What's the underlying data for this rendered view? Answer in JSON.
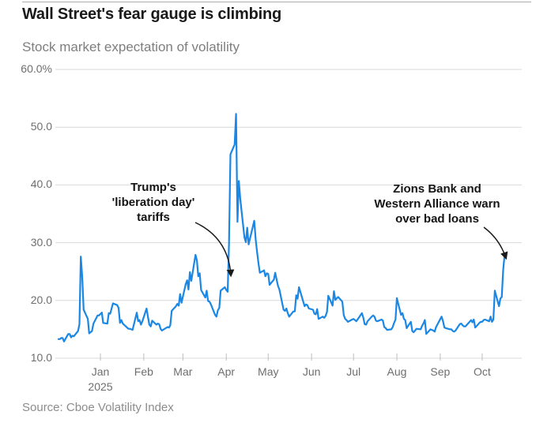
{
  "header": {
    "title": "Wall Street's fear gauge is climbing",
    "subtitle": "Stock market expectation of volatility"
  },
  "footer": {
    "source": "Source: Cboe Volatility Index"
  },
  "chart_data": {
    "type": "line",
    "title": "Wall Street's fear gauge is climbing",
    "subtitle": "Stock market expectation of volatility",
    "series_name": "Cboe Volatility Index (VIX)",
    "unit": "%",
    "ylim": [
      10,
      60
    ],
    "grid": "horizontal",
    "legend": "none",
    "colors": {
      "line": "#1b87e4",
      "grid": "#d9d9d9",
      "tick": "#bdbdbd",
      "arrow": "#1a1a1a"
    },
    "yticks": [
      {
        "value": 60,
        "label": "60.0%"
      },
      {
        "value": 50,
        "label": "50.0"
      },
      {
        "value": 40,
        "label": "40.0"
      },
      {
        "value": 30,
        "label": "30.0"
      },
      {
        "value": 20,
        "label": "20.0"
      },
      {
        "value": 10,
        "label": "10.0"
      }
    ],
    "xticks": [
      {
        "date": "2025-01-01",
        "label": "Jan",
        "sublabel": "2025"
      },
      {
        "date": "2025-02-01",
        "label": "Feb"
      },
      {
        "date": "2025-03-01",
        "label": "Mar"
      },
      {
        "date": "2025-04-01",
        "label": "Apr"
      },
      {
        "date": "2025-05-01",
        "label": "May"
      },
      {
        "date": "2025-06-01",
        "label": "Jun"
      },
      {
        "date": "2025-07-01",
        "label": "Jul"
      },
      {
        "date": "2025-08-01",
        "label": "Aug"
      },
      {
        "date": "2025-09-01",
        "label": "Sep"
      },
      {
        "date": "2025-10-01",
        "label": "Oct"
      }
    ],
    "annotations": [
      {
        "text": "Trump's\n'liberation day'\ntariffs",
        "center_x": 194,
        "top_y": 228,
        "arrow": {
          "from": [
            247,
            282
          ],
          "bend": [
            289,
            302
          ],
          "to": [
            292,
            349
          ]
        }
      },
      {
        "text": "Zions Bank and\nWestern Alliance warn\nover bad loans",
        "center_x": 553,
        "top_y": 230,
        "arrow": {
          "from": [
            612,
            288
          ],
          "bend": [
            632,
            303
          ],
          "to": [
            640,
            327
          ]
        }
      }
    ],
    "points": [
      [
        "2024-12-02",
        13.3
      ],
      [
        "2024-12-03",
        13.3
      ],
      [
        "2024-12-04",
        13.5
      ],
      [
        "2024-12-05",
        13.5
      ],
      [
        "2024-12-06",
        12.9
      ],
      [
        "2024-12-09",
        14.2
      ],
      [
        "2024-12-10",
        14.2
      ],
      [
        "2024-12-11",
        13.6
      ],
      [
        "2024-12-12",
        13.9
      ],
      [
        "2024-12-13",
        13.8
      ],
      [
        "2024-12-16",
        14.7
      ],
      [
        "2024-12-17",
        15.9
      ],
      [
        "2024-12-18",
        27.6
      ],
      [
        "2024-12-19",
        24.1
      ],
      [
        "2024-12-20",
        18.4
      ],
      [
        "2024-12-23",
        16.8
      ],
      [
        "2024-12-24",
        14.3
      ],
      [
        "2024-12-26",
        14.7
      ],
      [
        "2024-12-27",
        16.0
      ],
      [
        "2024-12-30",
        17.4
      ],
      [
        "2024-12-31",
        17.4
      ],
      [
        "2025-01-02",
        17.9
      ],
      [
        "2025-01-03",
        16.1
      ],
      [
        "2025-01-06",
        16.0
      ],
      [
        "2025-01-07",
        17.8
      ],
      [
        "2025-01-08",
        17.7
      ],
      [
        "2025-01-10",
        19.5
      ],
      [
        "2025-01-13",
        19.2
      ],
      [
        "2025-01-14",
        18.7
      ],
      [
        "2025-01-15",
        16.1
      ],
      [
        "2025-01-16",
        16.6
      ],
      [
        "2025-01-17",
        16.0
      ],
      [
        "2025-01-21",
        15.1
      ],
      [
        "2025-01-22",
        15.1
      ],
      [
        "2025-01-23",
        15.0
      ],
      [
        "2025-01-24",
        14.9
      ],
      [
        "2025-01-27",
        17.9
      ],
      [
        "2025-01-28",
        16.4
      ],
      [
        "2025-01-29",
        16.6
      ],
      [
        "2025-01-30",
        15.8
      ],
      [
        "2025-01-31",
        16.4
      ],
      [
        "2025-02-03",
        18.6
      ],
      [
        "2025-02-04",
        17.2
      ],
      [
        "2025-02-05",
        15.8
      ],
      [
        "2025-02-06",
        15.5
      ],
      [
        "2025-02-07",
        16.5
      ],
      [
        "2025-02-10",
        15.8
      ],
      [
        "2025-02-11",
        16.0
      ],
      [
        "2025-02-12",
        15.9
      ],
      [
        "2025-02-13",
        15.1
      ],
      [
        "2025-02-14",
        14.8
      ],
      [
        "2025-02-18",
        15.4
      ],
      [
        "2025-02-19",
        15.3
      ],
      [
        "2025-02-20",
        15.7
      ],
      [
        "2025-02-21",
        18.2
      ],
      [
        "2025-02-24",
        19.0
      ],
      [
        "2025-02-25",
        19.4
      ],
      [
        "2025-02-26",
        19.1
      ],
      [
        "2025-02-27",
        21.1
      ],
      [
        "2025-02-28",
        19.6
      ],
      [
        "2025-03-03",
        22.8
      ],
      [
        "2025-03-04",
        23.5
      ],
      [
        "2025-03-05",
        21.9
      ],
      [
        "2025-03-06",
        24.9
      ],
      [
        "2025-03-07",
        23.4
      ],
      [
        "2025-03-10",
        27.9
      ],
      [
        "2025-03-11",
        26.9
      ],
      [
        "2025-03-12",
        24.2
      ],
      [
        "2025-03-13",
        24.7
      ],
      [
        "2025-03-14",
        21.8
      ],
      [
        "2025-03-17",
        20.5
      ],
      [
        "2025-03-18",
        21.7
      ],
      [
        "2025-03-19",
        19.9
      ],
      [
        "2025-03-20",
        19.8
      ],
      [
        "2025-03-21",
        19.3
      ],
      [
        "2025-03-24",
        17.5
      ],
      [
        "2025-03-25",
        17.2
      ],
      [
        "2025-03-26",
        18.3
      ],
      [
        "2025-03-27",
        18.7
      ],
      [
        "2025-03-28",
        21.7
      ],
      [
        "2025-03-31",
        22.3
      ],
      [
        "2025-04-01",
        21.8
      ],
      [
        "2025-04-02",
        21.5
      ],
      [
        "2025-04-03",
        30.0
      ],
      [
        "2025-04-04",
        45.3
      ],
      [
        "2025-04-07",
        47.0
      ],
      [
        "2025-04-08",
        52.3
      ],
      [
        "2025-04-09",
        33.6
      ],
      [
        "2025-04-10",
        40.7
      ],
      [
        "2025-04-11",
        37.6
      ],
      [
        "2025-04-14",
        30.9
      ],
      [
        "2025-04-15",
        30.1
      ],
      [
        "2025-04-16",
        32.6
      ],
      [
        "2025-04-17",
        29.7
      ],
      [
        "2025-04-21",
        33.8
      ],
      [
        "2025-04-22",
        30.6
      ],
      [
        "2025-04-23",
        28.5
      ],
      [
        "2025-04-24",
        26.5
      ],
      [
        "2025-04-25",
        24.8
      ],
      [
        "2025-04-28",
        25.2
      ],
      [
        "2025-04-29",
        24.2
      ],
      [
        "2025-04-30",
        24.7
      ],
      [
        "2025-05-01",
        24.6
      ],
      [
        "2025-05-02",
        22.7
      ],
      [
        "2025-05-05",
        23.6
      ],
      [
        "2025-05-06",
        24.8
      ],
      [
        "2025-05-07",
        23.6
      ],
      [
        "2025-05-08",
        22.5
      ],
      [
        "2025-05-09",
        21.9
      ],
      [
        "2025-05-12",
        18.4
      ],
      [
        "2025-05-13",
        18.2
      ],
      [
        "2025-05-14",
        18.6
      ],
      [
        "2025-05-15",
        17.8
      ],
      [
        "2025-05-16",
        17.2
      ],
      [
        "2025-05-19",
        18.1
      ],
      [
        "2025-05-20",
        18.1
      ],
      [
        "2025-05-21",
        20.9
      ],
      [
        "2025-05-22",
        20.3
      ],
      [
        "2025-05-23",
        22.3
      ],
      [
        "2025-05-27",
        19.0
      ],
      [
        "2025-05-28",
        19.3
      ],
      [
        "2025-05-29",
        19.2
      ],
      [
        "2025-05-30",
        18.6
      ],
      [
        "2025-06-02",
        18.4
      ],
      [
        "2025-06-03",
        17.7
      ],
      [
        "2025-06-04",
        17.6
      ],
      [
        "2025-06-05",
        18.5
      ],
      [
        "2025-06-06",
        16.8
      ],
      [
        "2025-06-09",
        17.2
      ],
      [
        "2025-06-10",
        17.0
      ],
      [
        "2025-06-11",
        17.3
      ],
      [
        "2025-06-12",
        18.0
      ],
      [
        "2025-06-13",
        20.8
      ],
      [
        "2025-06-16",
        19.1
      ],
      [
        "2025-06-17",
        21.6
      ],
      [
        "2025-06-18",
        20.1
      ],
      [
        "2025-06-20",
        20.6
      ],
      [
        "2025-06-23",
        19.8
      ],
      [
        "2025-06-24",
        17.5
      ],
      [
        "2025-06-25",
        16.8
      ],
      [
        "2025-06-26",
        16.6
      ],
      [
        "2025-06-27",
        16.3
      ],
      [
        "2025-06-30",
        16.7
      ],
      [
        "2025-07-01",
        16.8
      ],
      [
        "2025-07-02",
        16.6
      ],
      [
        "2025-07-03",
        16.4
      ],
      [
        "2025-07-07",
        17.8
      ],
      [
        "2025-07-08",
        17.0
      ],
      [
        "2025-07-09",
        15.9
      ],
      [
        "2025-07-10",
        15.8
      ],
      [
        "2025-07-11",
        16.4
      ],
      [
        "2025-07-14",
        17.2
      ],
      [
        "2025-07-15",
        17.4
      ],
      [
        "2025-07-16",
        17.2
      ],
      [
        "2025-07-17",
        16.5
      ],
      [
        "2025-07-18",
        16.4
      ],
      [
        "2025-07-21",
        16.7
      ],
      [
        "2025-07-22",
        16.5
      ],
      [
        "2025-07-23",
        15.4
      ],
      [
        "2025-07-24",
        15.2
      ],
      [
        "2025-07-25",
        14.9
      ],
      [
        "2025-07-28",
        15.0
      ],
      [
        "2025-07-29",
        15.4
      ],
      [
        "2025-07-30",
        16.1
      ],
      [
        "2025-07-31",
        16.7
      ],
      [
        "2025-08-01",
        20.4
      ],
      [
        "2025-08-04",
        17.5
      ],
      [
        "2025-08-05",
        17.8
      ],
      [
        "2025-08-06",
        16.8
      ],
      [
        "2025-08-07",
        16.6
      ],
      [
        "2025-08-08",
        15.2
      ],
      [
        "2025-08-11",
        16.3
      ],
      [
        "2025-08-12",
        14.7
      ],
      [
        "2025-08-13",
        14.5
      ],
      [
        "2025-08-14",
        14.8
      ],
      [
        "2025-08-15",
        15.1
      ],
      [
        "2025-08-18",
        15.0
      ],
      [
        "2025-08-19",
        15.6
      ],
      [
        "2025-08-20",
        16.0
      ],
      [
        "2025-08-21",
        16.6
      ],
      [
        "2025-08-22",
        14.2
      ],
      [
        "2025-08-25",
        15.0
      ],
      [
        "2025-08-26",
        14.9
      ],
      [
        "2025-08-27",
        14.8
      ],
      [
        "2025-08-28",
        14.6
      ],
      [
        "2025-08-29",
        15.4
      ],
      [
        "2025-09-02",
        17.2
      ],
      [
        "2025-09-03",
        16.4
      ],
      [
        "2025-09-04",
        15.3
      ],
      [
        "2025-09-05",
        15.2
      ],
      [
        "2025-09-08",
        15.0
      ],
      [
        "2025-09-09",
        15.0
      ],
      [
        "2025-09-10",
        14.7
      ],
      [
        "2025-09-11",
        14.6
      ],
      [
        "2025-09-12",
        14.8
      ],
      [
        "2025-09-15",
        15.9
      ],
      [
        "2025-09-16",
        16.0
      ],
      [
        "2025-09-17",
        15.7
      ],
      [
        "2025-09-18",
        15.5
      ],
      [
        "2025-09-19",
        15.5
      ],
      [
        "2025-09-22",
        16.3
      ],
      [
        "2025-09-23",
        16.6
      ],
      [
        "2025-09-24",
        16.2
      ],
      [
        "2025-09-25",
        16.7
      ],
      [
        "2025-09-26",
        15.3
      ],
      [
        "2025-09-29",
        16.1
      ],
      [
        "2025-09-30",
        16.3
      ],
      [
        "2025-10-01",
        16.3
      ],
      [
        "2025-10-02",
        16.6
      ],
      [
        "2025-10-03",
        16.7
      ],
      [
        "2025-10-06",
        16.4
      ],
      [
        "2025-10-07",
        17.2
      ],
      [
        "2025-10-08",
        16.3
      ],
      [
        "2025-10-09",
        16.7
      ],
      [
        "2025-10-10",
        21.7
      ],
      [
        "2025-10-13",
        19.0
      ],
      [
        "2025-10-14",
        20.3
      ],
      [
        "2025-10-15",
        20.6
      ],
      [
        "2025-10-16",
        25.3
      ],
      [
        "2025-10-17",
        27.7
      ]
    ]
  }
}
